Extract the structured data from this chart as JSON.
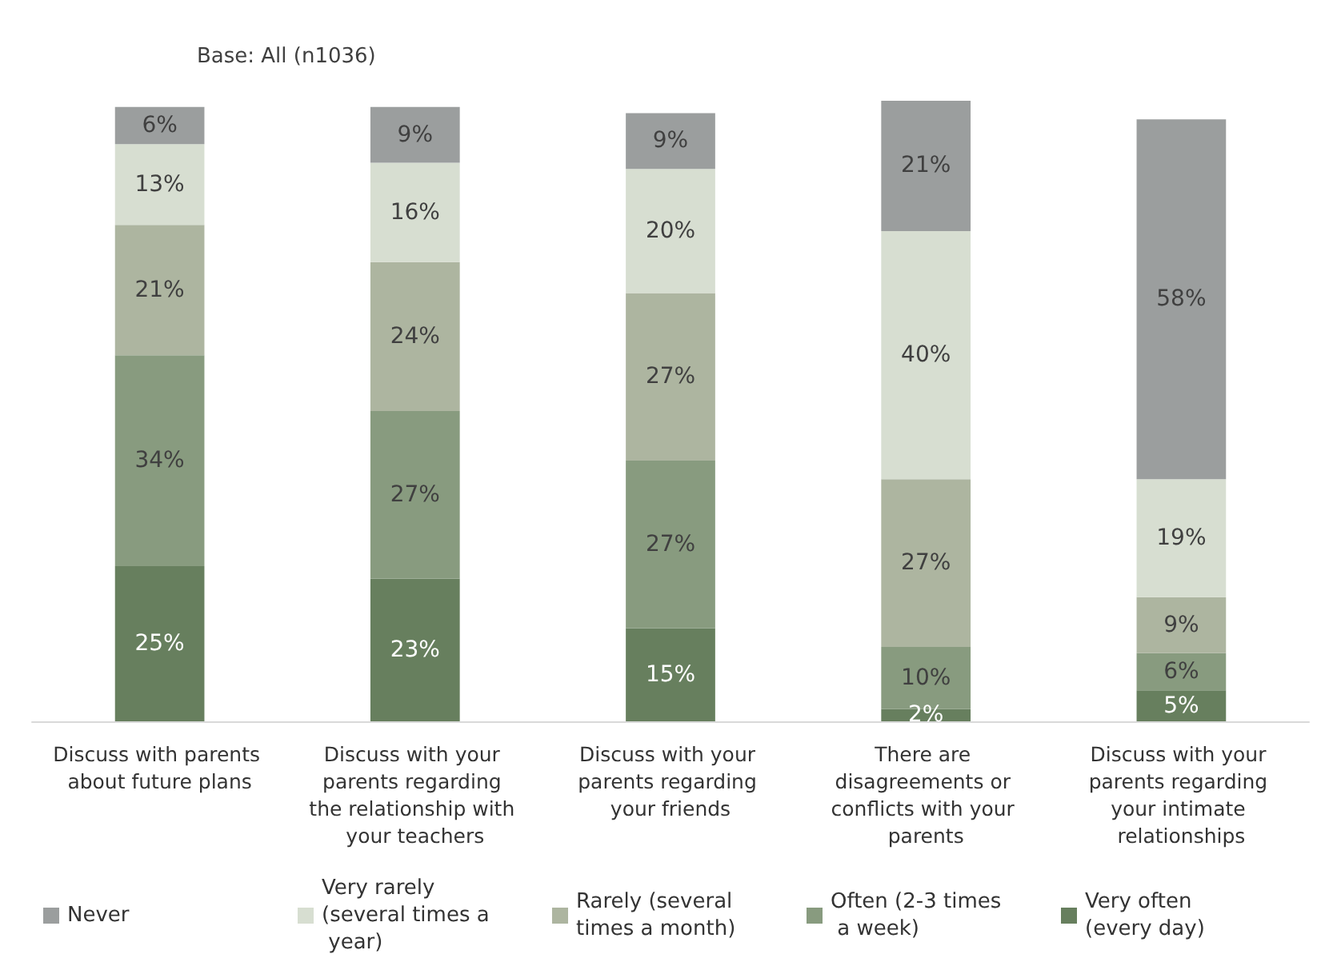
{
  "chart_data": {
    "type": "bar",
    "stacked": true,
    "legend": "bottom",
    "annotations": [
      "Base: All (n1036)"
    ],
    "categories": [
      "Discuss with parents about future plans",
      "Discuss with your parents regarding the relationship with your teachers",
      "Discuss with your parents regarding your friends",
      "There are disagreements or conflicts with your parents",
      "Discuss with your parents regarding your intimate relationships"
    ],
    "series": [
      {
        "name": "Very often (every day)",
        "color": "#677f5e",
        "values": [
          25,
          23,
          15,
          2,
          5
        ],
        "value_labels": [
          "25%",
          "23%",
          "15%",
          "2%",
          "5%"
        ]
      },
      {
        "name": "Often (2-3 times a week)",
        "color": "#889b7f",
        "values": [
          34,
          27,
          27,
          10,
          6
        ],
        "value_labels": [
          "34%",
          "27%",
          "27%",
          "10%",
          "6%"
        ]
      },
      {
        "name": "Rarely (several times a month)",
        "color": "#adb5a0",
        "values": [
          21,
          24,
          27,
          27,
          9
        ],
        "value_labels": [
          "21%",
          "24%",
          "27%",
          "27%",
          "9%"
        ]
      },
      {
        "name": "Very rarely (several times a year)",
        "color": "#d7ded1",
        "values": [
          13,
          16,
          20,
          40,
          19
        ],
        "value_labels": [
          "13%",
          "16%",
          "20%",
          "40%",
          "19%"
        ]
      },
      {
        "name": "Never",
        "color": "#9b9e9e",
        "values": [
          6,
          9,
          9,
          21,
          58
        ],
        "value_labels": [
          "6%",
          "9%",
          "9%",
          "21%",
          "58%"
        ]
      }
    ]
  }
}
